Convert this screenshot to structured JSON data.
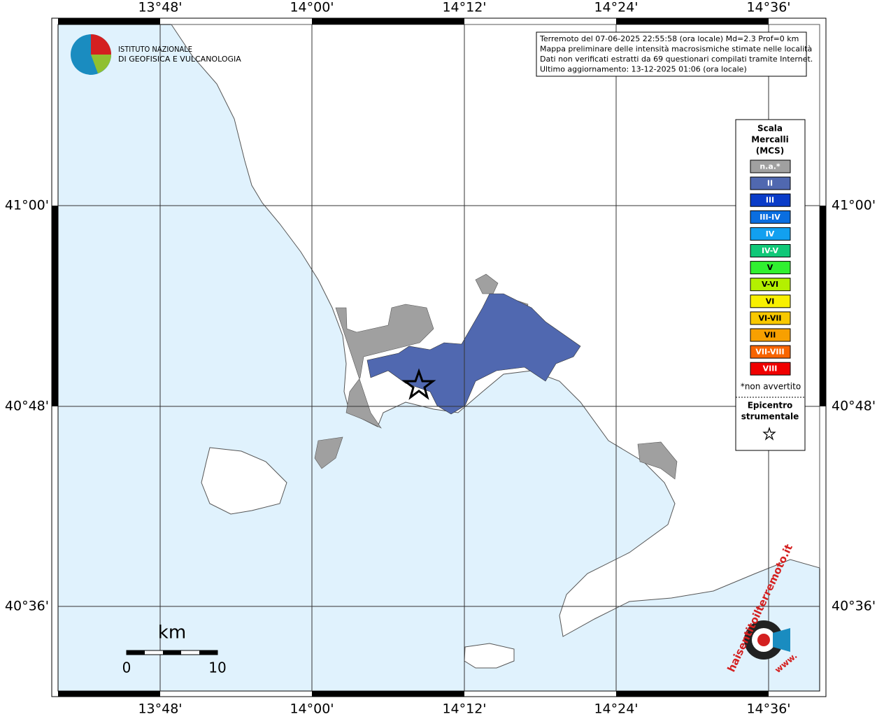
{
  "map": {
    "lon_labels": [
      "13°48'",
      "14°00'",
      "14°12'",
      "14°24'",
      "14°36'"
    ],
    "lat_labels": [
      "41°00'",
      "40°48'",
      "40°36'"
    ],
    "info": [
      "Terremoto del 07-06-2025 22:55:58 (ora locale) Md=2.3 Prof=0 km",
      "Mappa preliminare delle intensità macrosismiche stimate nelle località",
      "Dati non verificati estratti da 69 questionari compilati tramite Internet.",
      "Ultimo aggiornamento: 13-12-2025 01:06 (ora locale)"
    ],
    "logo": [
      "ISTITUTO NAZIONALE",
      "DI GEOFISICA E VULCANOLOGIA"
    ],
    "legend": {
      "title": [
        "Scala",
        "Mercalli",
        "(MCS)"
      ],
      "entries": [
        {
          "label": "n.a.*",
          "color": "#a0a0a0"
        },
        {
          "label": "II",
          "color": "#5068b0"
        },
        {
          "label": "III",
          "color": "#0a3cc8"
        },
        {
          "label": "III-IV",
          "color": "#0a6ee0"
        },
        {
          "label": "IV",
          "color": "#12a0f0"
        },
        {
          "label": "IV-V",
          "color": "#10c878"
        },
        {
          "label": "V",
          "color": "#30f030"
        },
        {
          "label": "V-VI",
          "color": "#b4f000"
        },
        {
          "label": "VI",
          "color": "#f8f000"
        },
        {
          "label": "VI-VII",
          "color": "#f8c800"
        },
        {
          "label": "VII",
          "color": "#f8a000"
        },
        {
          "label": "VII-VIII",
          "color": "#f86400"
        },
        {
          "label": "VIII",
          "color": "#f00000"
        }
      ],
      "note": "*non avvertito",
      "epicenter": [
        "Epicentro",
        "strumentale"
      ]
    },
    "scale": {
      "unit": "km",
      "ticks": [
        "0",
        "10"
      ]
    },
    "site": [
      "haisentitoilterremoto.it",
      "www."
    ]
  }
}
